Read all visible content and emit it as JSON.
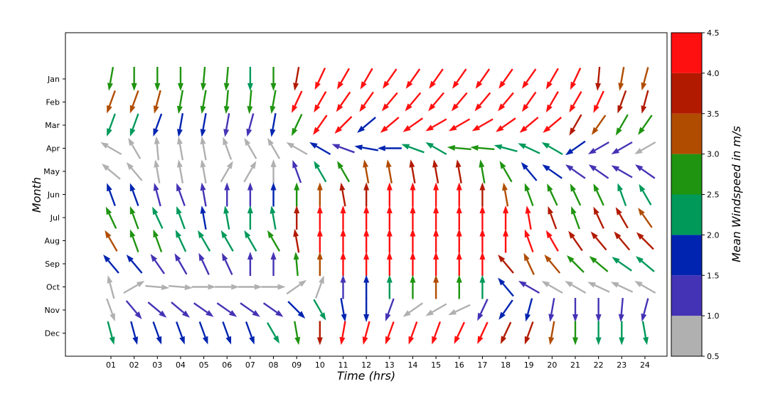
{
  "chart_data": {
    "type": "quiver",
    "xlabel": "Time (hrs)",
    "ylabel": "Month",
    "x_ticks": [
      "01",
      "02",
      "03",
      "04",
      "05",
      "06",
      "07",
      "08",
      "09",
      "10",
      "11",
      "12",
      "13",
      "14",
      "15",
      "16",
      "17",
      "18",
      "19",
      "20",
      "21",
      "22",
      "23",
      "24"
    ],
    "y_ticks": [
      "Jan",
      "Feb",
      "Mar",
      "Apr",
      "May",
      "Jun",
      "Jul",
      "Aug",
      "Sep",
      "Oct",
      "Nov",
      "Dec"
    ],
    "colorbar": {
      "label": "Mean Windspeed in m/s",
      "ticks": [
        "0.5",
        "1.0",
        "1.5",
        "2.0",
        "2.5",
        "3.0",
        "3.5",
        "4.0",
        "4.5"
      ],
      "range": [
        0.5,
        4.5
      ],
      "bins": [
        {
          "from": 0.5,
          "to": 1.0,
          "color": "#b0b0b0"
        },
        {
          "from": 1.0,
          "to": 1.5,
          "color": "#4433b5"
        },
        {
          "from": 1.5,
          "to": 2.0,
          "color": "#0024b0"
        },
        {
          "from": 2.0,
          "to": 2.5,
          "color": "#00995a"
        },
        {
          "from": 2.5,
          "to": 3.0,
          "color": "#1f9410"
        },
        {
          "from": 3.0,
          "to": 3.5,
          "color": "#b04c00"
        },
        {
          "from": 3.5,
          "to": 4.0,
          "color": "#b21a00"
        },
        {
          "from": 4.0,
          "to": 4.5,
          "color": "#ff1010"
        }
      ]
    },
    "direction_unit": "degrees, 0 = pointing up, clockwise",
    "direction": [
      [
        190,
        180,
        180,
        180,
        185,
        185,
        180,
        180,
        190,
        205,
        210,
        210,
        215,
        215,
        215,
        215,
        215,
        215,
        215,
        210,
        205,
        185,
        190,
        195
      ],
      [
        200,
        200,
        195,
        190,
        190,
        185,
        185,
        190,
        205,
        210,
        215,
        215,
        220,
        220,
        220,
        220,
        220,
        220,
        215,
        210,
        210,
        205,
        200,
        195
      ],
      [
        200,
        200,
        200,
        190,
        190,
        190,
        195,
        190,
        205,
        215,
        225,
        230,
        230,
        235,
        240,
        240,
        240,
        235,
        230,
        230,
        210,
        215,
        210,
        215
      ],
      [
        300,
        330,
        355,
        350,
        350,
        340,
        330,
        330,
        300,
        300,
        290,
        280,
        270,
        290,
        300,
        275,
        275,
        285,
        295,
        300,
        235,
        240,
        240,
        240
      ],
      [
        310,
        320,
        350,
        350,
        350,
        30,
        30,
        0,
        340,
        330,
        330,
        350,
        350,
        350,
        350,
        350,
        350,
        330,
        320,
        305,
        305,
        305,
        300,
        305
      ],
      [
        340,
        340,
        345,
        340,
        350,
        0,
        0,
        0,
        0,
        0,
        350,
        0,
        0,
        0,
        0,
        0,
        0,
        350,
        340,
        335,
        335,
        335,
        340,
        330
      ],
      [
        335,
        340,
        335,
        340,
        350,
        350,
        0,
        350,
        0,
        0,
        0,
        0,
        0,
        0,
        0,
        0,
        0,
        0,
        350,
        340,
        340,
        335,
        330,
        325
      ],
      [
        330,
        340,
        340,
        335,
        330,
        330,
        330,
        330,
        350,
        0,
        0,
        0,
        0,
        0,
        0,
        0,
        0,
        0,
        340,
        330,
        325,
        320,
        320,
        315
      ],
      [
        320,
        320,
        325,
        330,
        335,
        335,
        0,
        0,
        355,
        0,
        0,
        0,
        0,
        0,
        0,
        0,
        0,
        320,
        335,
        320,
        315,
        310,
        305,
        310
      ],
      [
        345,
        60,
        95,
        95,
        90,
        90,
        90,
        90,
        55,
        20,
        0,
        0,
        0,
        0,
        0,
        0,
        0,
        320,
        300,
        300,
        300,
        295,
        295,
        300
      ],
      [
        160,
        140,
        130,
        130,
        125,
        125,
        125,
        125,
        135,
        150,
        170,
        180,
        200,
        235,
        240,
        245,
        205,
        215,
        195,
        190,
        180,
        180,
        185,
        195
      ],
      [
        165,
        165,
        160,
        160,
        160,
        160,
        160,
        150,
        170,
        180,
        190,
        195,
        200,
        200,
        200,
        205,
        205,
        205,
        200,
        190,
        180,
        180,
        180,
        170
      ]
    ],
    "speed": [
      [
        2.7,
        2.7,
        2.6,
        2.7,
        2.7,
        2.7,
        2.4,
        2.6,
        3.8,
        4.3,
        4.3,
        4.3,
        4.3,
        4.3,
        4.3,
        4.3,
        4.3,
        4.3,
        4.3,
        4.3,
        4.3,
        3.8,
        3.3,
        3.3
      ],
      [
        3.3,
        3.3,
        3.3,
        2.7,
        2.7,
        2.7,
        2.6,
        2.7,
        4.3,
        4.3,
        4.3,
        4.3,
        4.3,
        4.3,
        4.3,
        4.3,
        4.3,
        4.3,
        4.3,
        4.3,
        4.3,
        4.3,
        3.8,
        3.8
      ],
      [
        2.3,
        2.3,
        1.8,
        1.8,
        1.8,
        1.3,
        1.3,
        1.8,
        2.7,
        4.3,
        4.3,
        1.8,
        4.3,
        4.3,
        4.3,
        4.3,
        4.3,
        4.3,
        4.3,
        4.3,
        3.8,
        3.3,
        2.7,
        2.7
      ],
      [
        0.8,
        0.8,
        0.8,
        0.8,
        0.8,
        0.8,
        0.8,
        0.8,
        0.8,
        1.8,
        1.3,
        1.8,
        1.8,
        2.3,
        2.3,
        2.7,
        2.7,
        2.3,
        2.3,
        2.3,
        1.8,
        1.3,
        1.3,
        0.8
      ],
      [
        0.8,
        0.8,
        0.8,
        0.8,
        0.8,
        0.8,
        0.8,
        0.8,
        1.3,
        2.3,
        2.7,
        3.3,
        3.3,
        3.8,
        3.8,
        3.8,
        2.7,
        2.7,
        1.8,
        1.8,
        1.3,
        1.3,
        1.3,
        1.3
      ],
      [
        1.8,
        1.8,
        1.3,
        1.3,
        1.3,
        1.3,
        1.3,
        1.8,
        2.7,
        3.3,
        3.8,
        3.8,
        4.3,
        4.3,
        4.3,
        4.3,
        3.8,
        3.3,
        2.7,
        2.7,
        2.7,
        2.7,
        2.3,
        2.3
      ],
      [
        2.7,
        2.7,
        2.3,
        2.3,
        1.8,
        2.3,
        2.3,
        2.3,
        3.8,
        4.3,
        4.3,
        4.3,
        4.3,
        4.3,
        4.3,
        4.3,
        4.3,
        4.3,
        4.3,
        3.8,
        2.7,
        3.8,
        3.8,
        3.3
      ],
      [
        3.3,
        2.7,
        2.7,
        2.3,
        2.3,
        2.3,
        2.3,
        2.7,
        3.8,
        4.3,
        4.3,
        4.3,
        4.3,
        4.3,
        4.3,
        4.3,
        4.3,
        4.3,
        4.3,
        4.3,
        3.8,
        3.8,
        3.8,
        3.8
      ],
      [
        1.8,
        1.8,
        1.3,
        1.3,
        1.3,
        1.3,
        1.3,
        1.3,
        2.7,
        3.3,
        4.3,
        4.3,
        4.3,
        4.3,
        4.3,
        4.3,
        4.3,
        3.8,
        3.3,
        3.3,
        2.7,
        2.7,
        2.3,
        2.3
      ],
      [
        0.8,
        0.8,
        0.8,
        0.8,
        0.8,
        0.8,
        0.8,
        0.8,
        0.8,
        0.8,
        1.3,
        1.8,
        2.3,
        2.7,
        3.3,
        2.7,
        2.3,
        1.8,
        1.3,
        0.8,
        0.8,
        0.8,
        0.8,
        0.8
      ],
      [
        0.8,
        1.3,
        1.3,
        1.3,
        1.3,
        1.3,
        1.3,
        1.3,
        1.8,
        2.3,
        1.8,
        1.8,
        1.3,
        0.8,
        0.8,
        0.8,
        1.3,
        1.8,
        1.8,
        1.3,
        1.3,
        1.3,
        1.3,
        1.3
      ],
      [
        2.3,
        1.8,
        1.8,
        1.8,
        1.8,
        1.8,
        1.8,
        2.3,
        2.7,
        3.8,
        4.3,
        4.3,
        4.3,
        4.3,
        4.3,
        4.3,
        4.3,
        3.8,
        3.8,
        3.3,
        2.7,
        2.3,
        2.3,
        2.3
      ]
    ],
    "grid": false,
    "legend": "colorbar-right"
  }
}
